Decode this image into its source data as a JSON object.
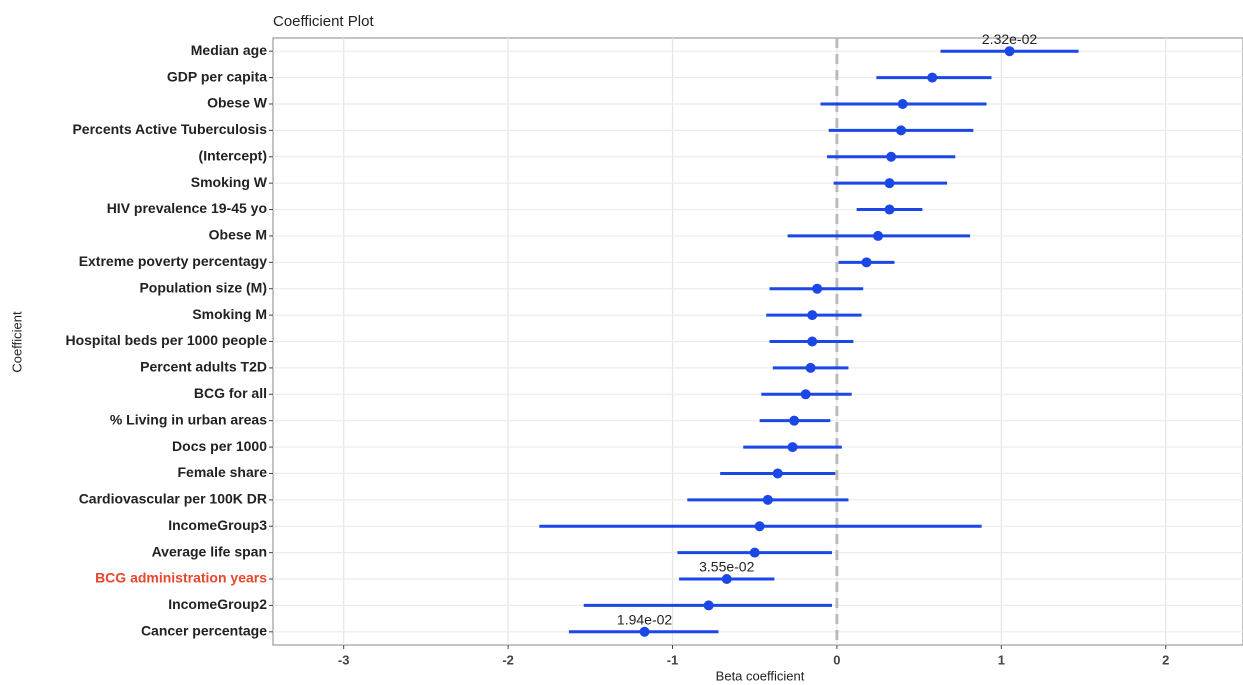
{
  "chart_data": {
    "type": "coefficient",
    "title": "Coefficient Plot",
    "x_label": "Beta coefficient",
    "y_label": "Coefficient",
    "categories": [
      "Median age",
      "GDP per capita",
      "Obese W",
      "Percents Active Tuberculosis",
      "(Intercept)",
      "Smoking W",
      "HIV prevalence 19-45 yo",
      "Obese M",
      "Extreme poverty percentagy",
      "Population size (M)",
      "Smoking M",
      "Hospital beds per 1000 people",
      "Percent adults T2D",
      "BCG for all",
      "% Living in urban areas",
      "Docs per 1000",
      "Female share",
      "Cardiovascular per 100K DR",
      "IncomeGroup3",
      "Average life span",
      "BCG administration years",
      "IncomeGroup2",
      "Cancer percentage"
    ],
    "values": [
      1.05,
      0.58,
      0.4,
      0.39,
      0.33,
      0.32,
      0.32,
      0.25,
      0.18,
      -0.12,
      -0.15,
      -0.15,
      -0.16,
      -0.19,
      -0.26,
      -0.27,
      -0.36,
      -0.42,
      -0.47,
      -0.5,
      -0.67,
      -0.78,
      -1.17
    ],
    "lower": [
      0.63,
      0.24,
      -0.1,
      -0.05,
      -0.06,
      -0.02,
      0.12,
      -0.3,
      0.01,
      -0.41,
      -0.43,
      -0.41,
      -0.39,
      -0.46,
      -0.47,
      -0.57,
      -0.71,
      -0.91,
      -1.81,
      -0.97,
      -0.96,
      -1.54,
      -1.63
    ],
    "upper": [
      1.47,
      0.94,
      0.91,
      0.83,
      0.72,
      0.67,
      0.52,
      0.81,
      0.35,
      0.16,
      0.15,
      0.1,
      0.07,
      0.09,
      -0.04,
      0.03,
      -0.01,
      0.07,
      0.88,
      -0.03,
      -0.38,
      -0.03,
      -0.72
    ],
    "point_labels": [
      "2.32e-02",
      null,
      null,
      null,
      null,
      null,
      null,
      null,
      null,
      null,
      null,
      null,
      null,
      null,
      null,
      null,
      null,
      null,
      null,
      null,
      "3.55e-02",
      null,
      "1.94e-02"
    ],
    "color": "#1a47e6",
    "highlight": {
      "index": 20,
      "color": "#e8472c"
    },
    "xlim": [
      -3.43,
      2.47
    ],
    "xticks": [
      -3,
      -2,
      -1,
      0,
      1,
      2
    ],
    "reference_line": 0,
    "grid": true
  }
}
